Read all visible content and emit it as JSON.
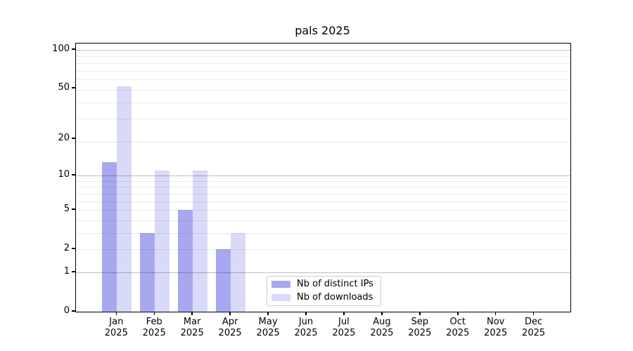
{
  "title": "pals 2025",
  "colors": {
    "distinct_ips": "#a8a8f0",
    "downloads": "#d9d9f8",
    "major_grid": "rgba(0,0,0,0.25)",
    "minor_grid": "rgba(0,0,0,0.08)",
    "axis": "#000000",
    "legend_border": "#cccccc",
    "background": "#ffffff"
  },
  "legend": {
    "items": [
      {
        "label": "Nb of distinct IPs",
        "series": "distinct_ips"
      },
      {
        "label": "Nb of downloads",
        "series": "downloads"
      }
    ]
  },
  "chart_data": {
    "type": "bar",
    "title": "pals 2025",
    "categories": [
      "Jan",
      "Feb",
      "Mar",
      "Apr",
      "May",
      "Jun",
      "Jul",
      "Aug",
      "Sep",
      "Oct",
      "Nov",
      "Dec"
    ],
    "year_label": "2025",
    "series": [
      {
        "name": "Nb of distinct IPs",
        "color_key": "distinct_ips",
        "values": [
          13,
          3,
          5,
          2,
          0,
          0,
          0,
          0,
          0,
          0,
          0,
          0
        ]
      },
      {
        "name": "Nb of downloads",
        "color_key": "downloads",
        "values": [
          52,
          11,
          11,
          3,
          0,
          0,
          0,
          0,
          0,
          0,
          0,
          0
        ]
      }
    ],
    "yticks": [
      0,
      1,
      2,
      5,
      10,
      20,
      50,
      100
    ],
    "major_grid_values": [
      1,
      10,
      100
    ],
    "minor_grid_values": [
      2,
      3,
      4,
      5,
      6,
      7,
      8,
      9,
      19,
      29,
      39,
      49,
      59,
      69,
      79,
      89
    ],
    "ylim": [
      0,
      111.7
    ],
    "scale": "log10(1+x)",
    "grid": "both",
    "legend_position": "lower center-left",
    "xlabel": "",
    "ylabel": ""
  }
}
